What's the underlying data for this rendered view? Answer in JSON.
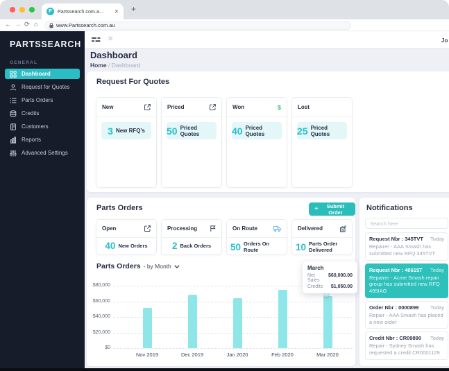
{
  "browser": {
    "tab_title": "Partssearch.com.a...",
    "favicon_letter": "P",
    "url": "www.Partssearch.com.au",
    "back": "←",
    "forward": "→",
    "reload": "⟳",
    "home": "⌂",
    "new_tab": "+",
    "close_tab": "✕"
  },
  "sidebar": {
    "logo": "PARTSSEARCH",
    "section_label": "GENERAL",
    "items": [
      {
        "label": "Dashboard",
        "icon": "grid-icon",
        "active": true
      },
      {
        "label": "Request for Quotes",
        "icon": "person-icon",
        "active": false
      },
      {
        "label": "Parts Orders",
        "icon": "list-icon",
        "active": false
      },
      {
        "label": "Credits",
        "icon": "coins-icon",
        "active": false
      },
      {
        "label": "Customers",
        "icon": "book-icon",
        "active": false
      },
      {
        "label": "Reports",
        "icon": "bar-chart-icon",
        "active": false
      },
      {
        "label": "Advanced Settings",
        "icon": "sliders-icon",
        "active": false
      }
    ]
  },
  "topbar": {
    "close_label": "✕",
    "user_text": "Jo"
  },
  "page": {
    "title": "Dashboard",
    "breadcrumb": {
      "home": "Home",
      "separator": "/",
      "current": "Dashboard"
    }
  },
  "rfq": {
    "title": "Request For Quotes",
    "cards": [
      {
        "label": "New",
        "icon": "external-link-icon",
        "value": "3",
        "value_label": "New RFQ's"
      },
      {
        "label": "Priced",
        "icon": "external-link-icon",
        "value": "50",
        "value_label": "Priced Quotes"
      },
      {
        "label": "Won",
        "icon": "dollar-icon",
        "value": "40",
        "value_label": "Priced Quotes"
      },
      {
        "label": "Lost",
        "icon": "",
        "value": "25",
        "value_label": "Priced Quotes"
      }
    ]
  },
  "parts_orders": {
    "title": "Parts Orders",
    "submit_button": "Submit Order",
    "cards": [
      {
        "label": "Open",
        "icon": "external-link-icon",
        "value": "40",
        "value_label": "New Orders"
      },
      {
        "label": "Processing",
        "icon": "flag-icon",
        "value": "2",
        "value_label": "Back Orders"
      },
      {
        "label": "On Route",
        "icon": "truck-icon",
        "value": "50",
        "value_label": "Orders On Route"
      },
      {
        "label": "Delivered",
        "icon": "warehouse-icon",
        "value": "10",
        "value_label": "Parts Order Delivered"
      }
    ]
  },
  "chart_data": {
    "type": "bar",
    "title_bold": "Parts Orders",
    "title_rest": "- by Month",
    "categories": [
      "Nov 2019",
      "Dec 2019",
      "Jan 2020",
      "Feb 2020",
      "Mar 2020"
    ],
    "values": [
      51500,
      68500,
      64000,
      74500,
      67000
    ],
    "ylim": [
      0,
      80000
    ],
    "ytick_values": [
      0,
      20000,
      40000,
      60000,
      80000
    ],
    "ytick_labels": [
      "$0",
      "$20,000",
      "$40,000",
      "$60,000",
      "$80,000"
    ],
    "grid": "horizontal-dashed",
    "legend": "none",
    "bar_color": "#8EE6E8",
    "tooltip": {
      "title": "March",
      "rows": [
        {
          "label": "Net Sales",
          "value": "$60,000.00"
        },
        {
          "label": "Credits",
          "value": "$1,050.00"
        }
      ],
      "attached_category": "Mar 2020"
    }
  },
  "notifications": {
    "title": "Notifications",
    "search_placeholder": "Search here",
    "items": [
      {
        "title": "Request Nbr : 345TVT",
        "time": "Today",
        "line1": "Repairer - AAA Smash has submitted new RFQ",
        "line2": "345TVT",
        "highlighted": false
      },
      {
        "title": "Request Nbr : 40615T",
        "time": "Today",
        "line1": "Repairer - Acme Smash repair group has submitted",
        "line2": "new RFQ 495IAG",
        "highlighted": true
      },
      {
        "title": "Order Nbr : 0000899",
        "time": "Today",
        "line1": "Repair - AAA Smash has placed a new order",
        "line2": "",
        "highlighted": false
      },
      {
        "title": "Credit Nbr : CR09890",
        "time": "Today",
        "line1": "Repair - Sydney Smash has requested a credit",
        "line2": "CR0001129",
        "highlighted": false
      }
    ]
  },
  "colors": {
    "accent_teal": "#2ABEC4",
    "button_teal": "#2BBDB9",
    "highlight_teal": "#2EC0BB",
    "number_teal": "#29BFC9",
    "chip_bg": "#E3F7F9",
    "bar_color": "#8EE6E8",
    "sidebar_bg": "#171C2B",
    "page_bg": "#EEF0F6",
    "dollar_green": "#3FBF83",
    "truck_blue": "#4FA9F2",
    "delivered_dot_green": "#35C77B"
  }
}
